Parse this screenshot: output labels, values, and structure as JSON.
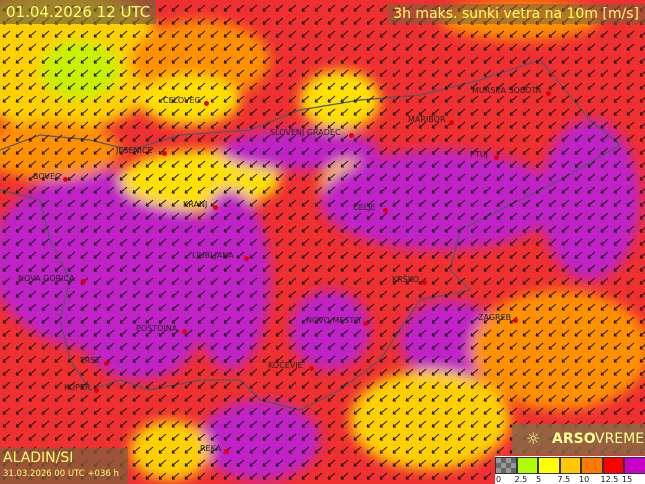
{
  "header": {
    "date": "01.04.2026 12 UTC",
    "variable": "3h maks. sunki vetra na 10m [m/s]"
  },
  "model": {
    "name": "ALADIN/SI",
    "run": "31.03.2026 00 UTC +036 h"
  },
  "brand": {
    "icon": "arso-sun-icon",
    "bold": "ARSO",
    "light": "VREME"
  },
  "legend": {
    "colors": [
      "#888888",
      "#b0ff00",
      "#ffff00",
      "#ffc800",
      "#ff7800",
      "#ff0000",
      "#c800c8"
    ],
    "labels": [
      "0",
      "2.5",
      "5",
      "7.5",
      "10",
      "12.5",
      "15"
    ]
  },
  "cities": [
    {
      "name": "CELOVEC"
    },
    {
      "name": "SLOVENJ GRADEC"
    },
    {
      "name": "MARIBOR"
    },
    {
      "name": "MURSKA SOBOTA"
    },
    {
      "name": "PTUJ"
    },
    {
      "name": "JESENICE"
    },
    {
      "name": "BOVEC"
    },
    {
      "name": "KRANJ"
    },
    {
      "name": "CELJE"
    },
    {
      "name": "LJUBLJANA"
    },
    {
      "name": "NOVA GORICA"
    },
    {
      "name": "KRŠKO"
    },
    {
      "name": "POSTOJNA"
    },
    {
      "name": "NOVO MESTO"
    },
    {
      "name": "ZAGREB"
    },
    {
      "name": "TRST"
    },
    {
      "name": "KOPER"
    },
    {
      "name": "KOČEVJE"
    },
    {
      "name": "REKA"
    }
  ]
}
